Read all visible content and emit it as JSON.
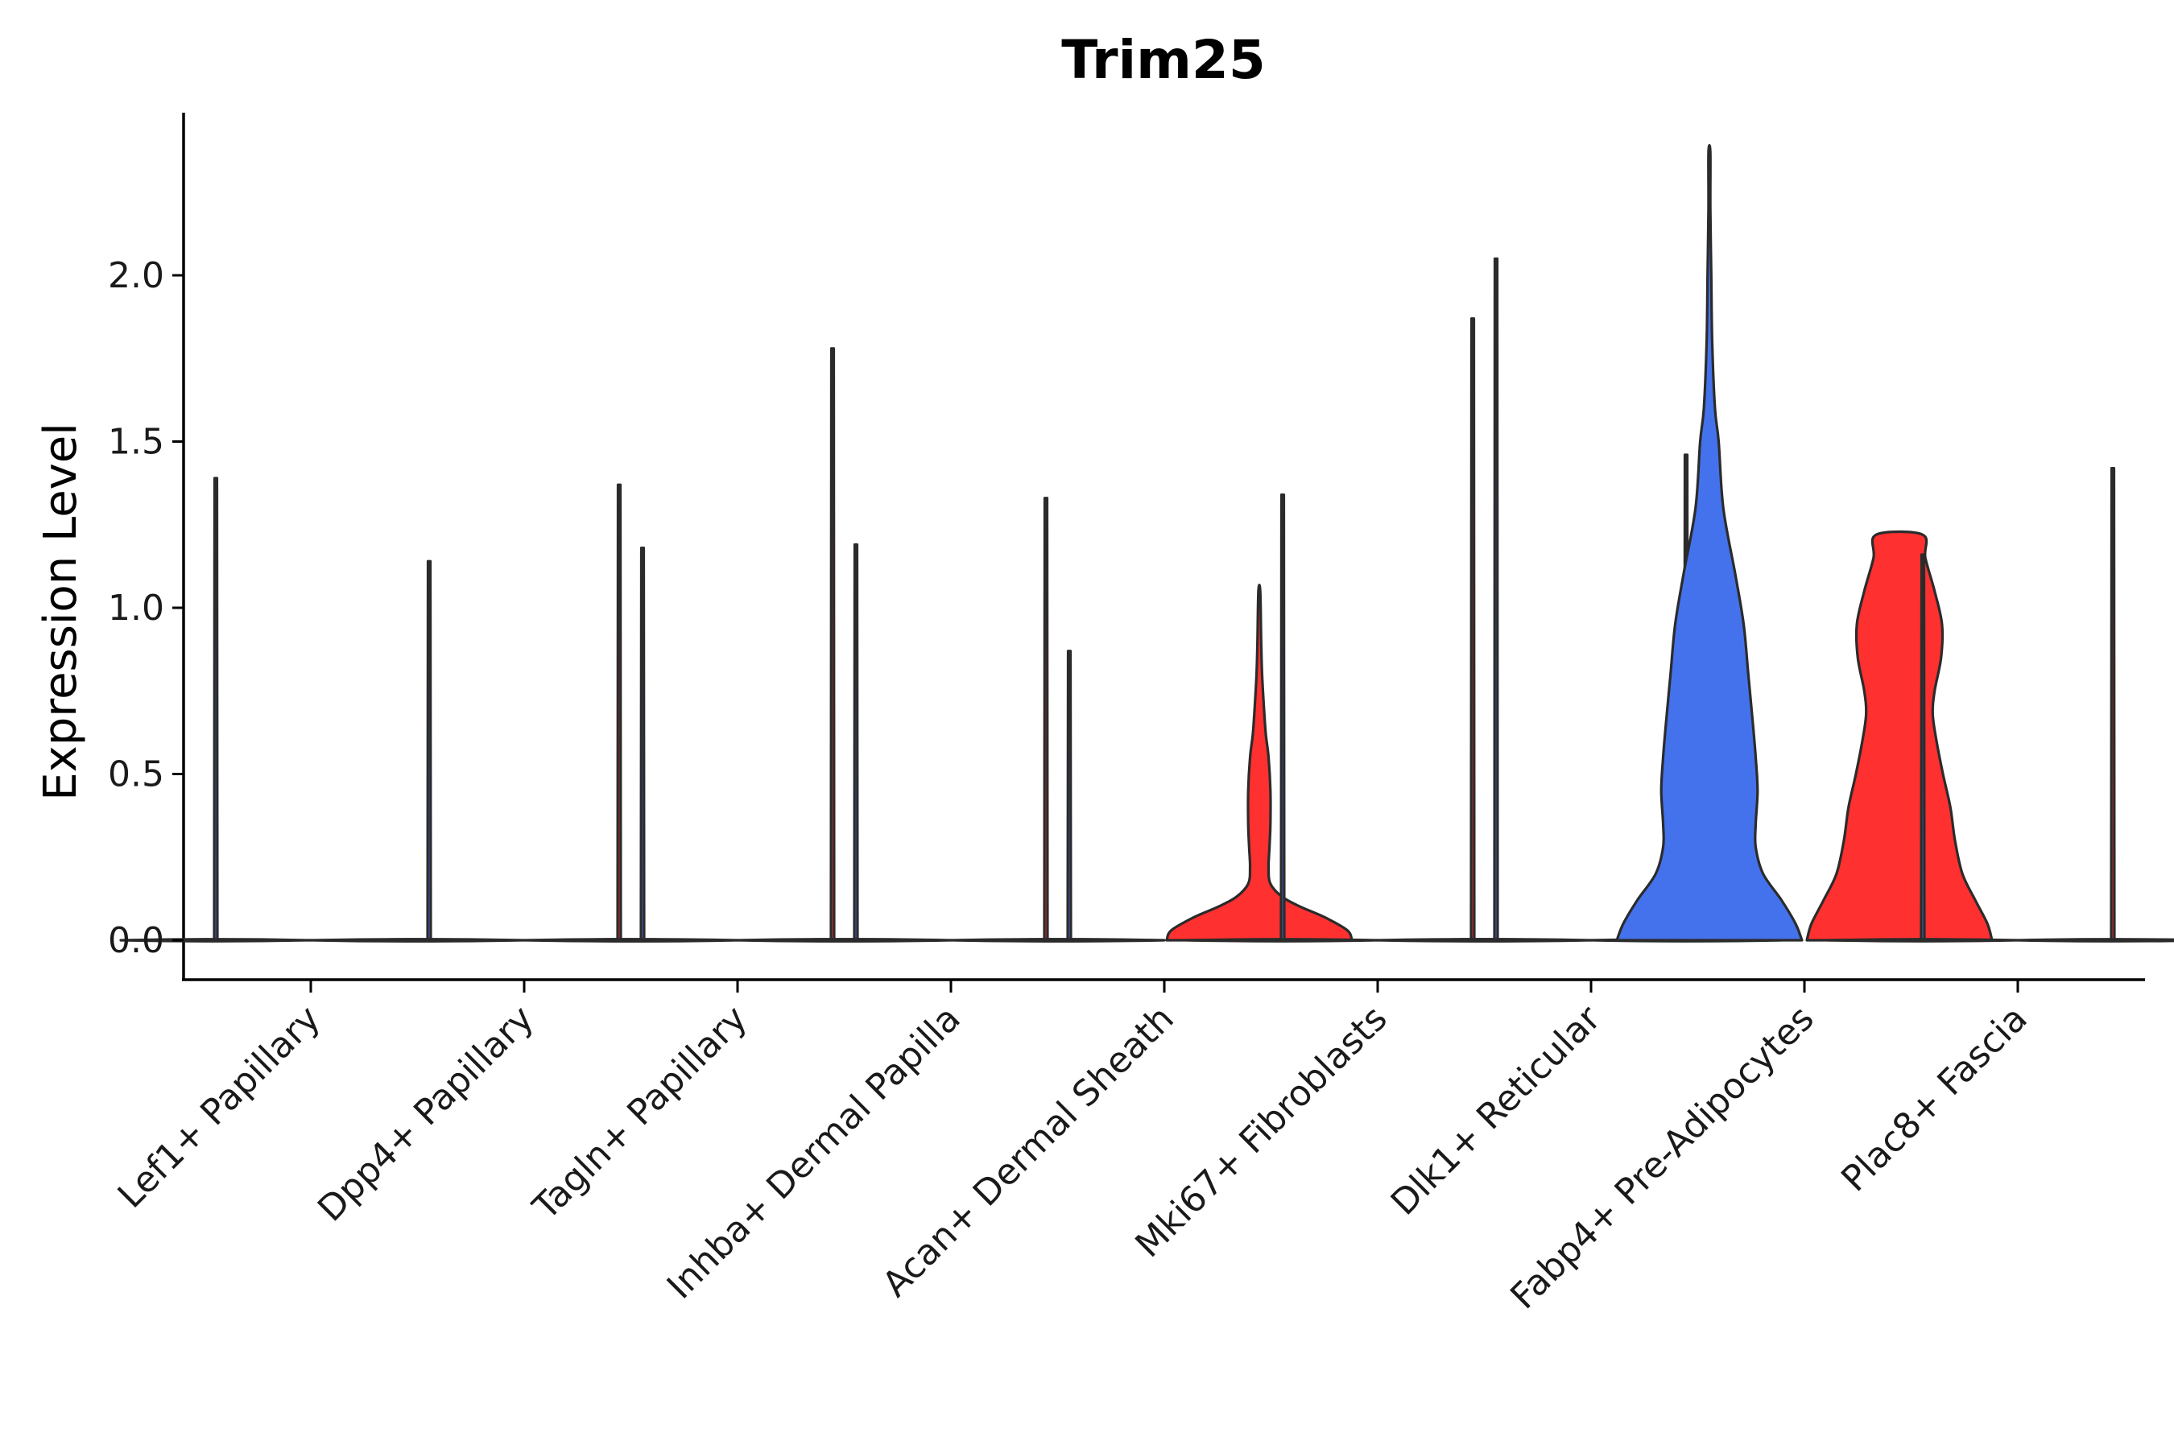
{
  "chart_data": {
    "type": "violin",
    "title": "Trim25",
    "xlabel": "",
    "ylabel": "Expression Level",
    "ylim": [
      -0.12,
      2.5
    ],
    "yticks": [
      0.0,
      0.5,
      1.0,
      1.5,
      2.0
    ],
    "ytick_labels": [
      "0.0",
      "0.5",
      "1.0",
      "1.5",
      "2.0"
    ],
    "grid": false,
    "legend": "none",
    "colors": {
      "group_a": "#4472EC",
      "group_b": "#FF3030",
      "outline": "#2b2b2b"
    },
    "categories": [
      "Lef1+ Papillary",
      "Dpp4+ Papillary",
      "Tagln+ Papillary",
      "Inhba+ Dermal Papilla",
      "Acan+ Dermal Sheath",
      "Mki67+ Fibroblasts",
      "Dlk1+ Reticular",
      "Fabp4+ Pre-Adipocytes",
      "Plac8+ Fascia"
    ],
    "series": [
      {
        "name": "group_a",
        "max_values": [
          1.39,
          1.14,
          1.18,
          1.19,
          0.87,
          1.34,
          2.05,
          2.37,
          1.16
        ]
      },
      {
        "name": "group_b",
        "max_values": [
          0.0,
          1.37,
          1.78,
          1.33,
          1.05,
          1.87,
          1.46,
          1.22,
          1.42
        ]
      }
    ],
    "highlighted_violins": [
      {
        "category": "Acan+ Dermal Sheath",
        "series": "group_b",
        "color": "#FF3030",
        "ymax": 1.05,
        "profile": [
          [
            0.0,
            1.0
          ],
          [
            0.03,
            0.95
          ],
          [
            0.07,
            0.7
          ],
          [
            0.1,
            0.45
          ],
          [
            0.13,
            0.25
          ],
          [
            0.17,
            0.12
          ],
          [
            0.22,
            0.1
          ],
          [
            0.28,
            0.11
          ],
          [
            0.35,
            0.12
          ],
          [
            0.45,
            0.12
          ],
          [
            0.55,
            0.1
          ],
          [
            0.62,
            0.07
          ],
          [
            0.7,
            0.05
          ],
          [
            0.8,
            0.03
          ],
          [
            0.9,
            0.02
          ],
          [
            1.05,
            0.01
          ]
        ]
      },
      {
        "category": "Fabp4+ Pre-Adipocytes",
        "series": "group_a",
        "color": "#4472EC",
        "ymax": 2.37,
        "profile": [
          [
            0.0,
            1.0
          ],
          [
            0.05,
            0.93
          ],
          [
            0.12,
            0.78
          ],
          [
            0.2,
            0.58
          ],
          [
            0.28,
            0.5
          ],
          [
            0.35,
            0.5
          ],
          [
            0.45,
            0.52
          ],
          [
            0.55,
            0.5
          ],
          [
            0.65,
            0.47
          ],
          [
            0.8,
            0.42
          ],
          [
            0.95,
            0.37
          ],
          [
            1.1,
            0.28
          ],
          [
            1.3,
            0.15
          ],
          [
            1.5,
            0.1
          ],
          [
            1.6,
            0.06
          ],
          [
            1.8,
            0.03
          ],
          [
            2.0,
            0.02
          ],
          [
            2.2,
            0.01
          ],
          [
            2.37,
            0.01
          ]
        ]
      },
      {
        "category": "Fabp4+ Pre-Adipocytes",
        "series": "group_b",
        "color": "#FF3030",
        "ymax": 1.22,
        "profile": [
          [
            0.0,
            1.0
          ],
          [
            0.05,
            0.95
          ],
          [
            0.12,
            0.82
          ],
          [
            0.2,
            0.68
          ],
          [
            0.3,
            0.6
          ],
          [
            0.4,
            0.55
          ],
          [
            0.5,
            0.47
          ],
          [
            0.6,
            0.4
          ],
          [
            0.68,
            0.36
          ],
          [
            0.75,
            0.38
          ],
          [
            0.85,
            0.45
          ],
          [
            0.95,
            0.46
          ],
          [
            1.05,
            0.38
          ],
          [
            1.15,
            0.28
          ],
          [
            1.22,
            0.25
          ]
        ]
      }
    ]
  }
}
